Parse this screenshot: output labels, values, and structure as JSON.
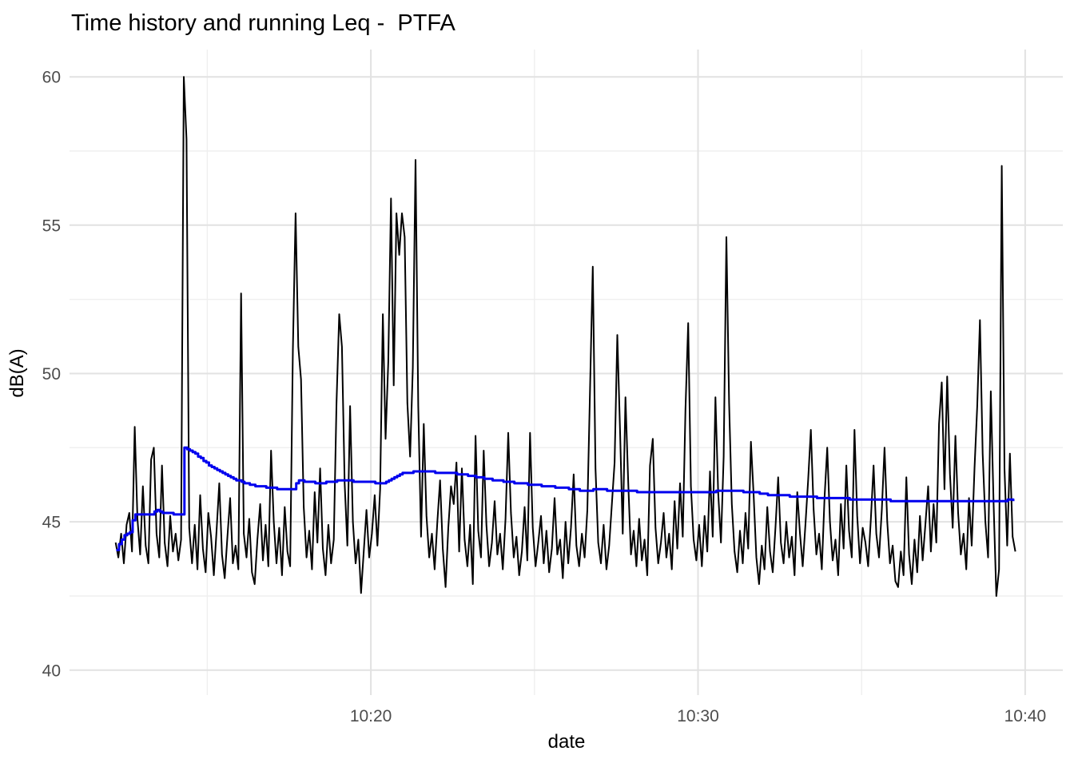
{
  "chart_data": {
    "type": "line",
    "title": "Time history and running Leq -  PTFA",
    "xlabel": "date",
    "ylabel": "dB(A)",
    "grid": {
      "background": "#ffffff",
      "major_color": "#e2e2e2",
      "minor_color": "#efefef",
      "legend": "none"
    },
    "x_axis": {
      "unit": "minutes after 10:00",
      "lim": [
        10.79,
        41.15
      ],
      "major_ticks": [
        {
          "value": 20,
          "label": "10:20"
        },
        {
          "value": 30,
          "label": "10:30"
        },
        {
          "value": 40,
          "label": "10:40"
        }
      ],
      "minor_ticks": [
        15,
        25,
        35
      ]
    },
    "y_axis": {
      "lim": [
        39.16,
        60.92
      ],
      "major_ticks": [
        {
          "value": 40,
          "label": "40"
        },
        {
          "value": 45,
          "label": "45"
        },
        {
          "value": 50,
          "label": "50"
        },
        {
          "value": 55,
          "label": "55"
        },
        {
          "value": 60,
          "label": "60"
        }
      ],
      "minor_ticks": [
        42.5,
        47.5,
        52.5,
        57.5
      ]
    },
    "series": [
      {
        "name": "time history",
        "draw": "line",
        "color": "#000000",
        "width": 2,
        "t0_min": 12.2,
        "dt_s": 5,
        "values": [
          44.3,
          43.8,
          44.6,
          43.6,
          44.9,
          45.3,
          44.0,
          48.2,
          45.1,
          43.9,
          46.2,
          44.2,
          43.6,
          47.1,
          47.5,
          44.6,
          43.8,
          46.9,
          44.3,
          43.5,
          45.2,
          44.0,
          44.6,
          43.7,
          44.4,
          60.0,
          57.9,
          44.8,
          43.6,
          44.9,
          43.4,
          45.9,
          44.1,
          43.3,
          45.3,
          44.5,
          43.2,
          44.7,
          46.3,
          43.9,
          43.1,
          44.5,
          45.8,
          43.6,
          44.2,
          43.4,
          52.7,
          44.6,
          43.8,
          45.1,
          43.3,
          42.9,
          44.4,
          45.6,
          43.7,
          44.9,
          43.5,
          47.4,
          45.0,
          43.6,
          44.8,
          43.2,
          45.5,
          44.0,
          43.5,
          50.8,
          55.4,
          50.9,
          49.8,
          45.5,
          43.8,
          44.7,
          43.4,
          46.0,
          44.3,
          46.8,
          44.1,
          43.2,
          44.9,
          43.6,
          44.4,
          49.0,
          52.0,
          50.9,
          46.3,
          44.2,
          48.9,
          45.0,
          43.6,
          44.4,
          42.6,
          44.0,
          45.4,
          43.8,
          44.6,
          45.9,
          44.2,
          46.1,
          52.0,
          47.8,
          50.4,
          55.9,
          49.6,
          55.4,
          54.0,
          55.4,
          54.6,
          49.0,
          47.2,
          50.2,
          57.2,
          48.9,
          44.5,
          48.3,
          45.2,
          43.8,
          44.6,
          43.4,
          45.0,
          46.4,
          44.1,
          42.8,
          44.8,
          46.2,
          45.6,
          47.0,
          44.0,
          46.8,
          44.4,
          43.5,
          44.9,
          42.9,
          47.9,
          44.7,
          43.8,
          47.4,
          44.9,
          43.5,
          44.3,
          45.7,
          43.9,
          44.6,
          43.4,
          45.1,
          48.0,
          45.3,
          43.8,
          44.5,
          43.2,
          44.0,
          45.5,
          43.7,
          48.0,
          44.8,
          43.5,
          44.3,
          45.2,
          43.6,
          44.7,
          43.3,
          44.1,
          45.8,
          43.9,
          44.4,
          43.1,
          45.0,
          43.6,
          44.8,
          46.6,
          44.2,
          43.5,
          44.6,
          43.8,
          45.4,
          49.5,
          53.6,
          46.8,
          44.3,
          43.6,
          44.9,
          43.4,
          44.2,
          45.6,
          47.0,
          51.3,
          48.1,
          44.6,
          49.2,
          46.3,
          43.9,
          44.7,
          43.5,
          45.1,
          43.7,
          44.4,
          43.2,
          46.9,
          47.8,
          44.8,
          43.6,
          44.3,
          45.3,
          43.8,
          44.6,
          43.4,
          45.7,
          44.1,
          46.3,
          44.5,
          48.8,
          51.7,
          46.2,
          44.4,
          43.7,
          44.9,
          43.5,
          45.2,
          44.0,
          46.7,
          44.5,
          49.2,
          46.0,
          44.3,
          47.2,
          54.6,
          49.0,
          45.6,
          44.0,
          43.3,
          44.7,
          43.6,
          45.3,
          44.1,
          47.7,
          45.9,
          43.8,
          42.9,
          44.2,
          43.4,
          45.5,
          44.0,
          43.3,
          44.8,
          46.5,
          44.3,
          43.6,
          45.0,
          43.8,
          44.5,
          43.2,
          46.0,
          44.6,
          43.5,
          44.9,
          46.4,
          48.1,
          45.4,
          43.9,
          44.6,
          43.4,
          45.8,
          47.5,
          45.0,
          43.7,
          44.4,
          43.2,
          45.6,
          44.1,
          46.9,
          44.7,
          43.8,
          48.1,
          45.2,
          43.6,
          44.8,
          44.3,
          43.5,
          45.1,
          46.9,
          44.6,
          43.8,
          45.4,
          47.5,
          45.0,
          43.6,
          44.2,
          43.0,
          42.8,
          44.0,
          43.2,
          46.5,
          43.9,
          42.9,
          44.4,
          43.3,
          45.2,
          43.7,
          44.9,
          46.2,
          44.0,
          45.6,
          44.3,
          48.3,
          49.7,
          46.1,
          49.9,
          46.6,
          44.8,
          47.9,
          45.3,
          43.9,
          44.6,
          43.4,
          45.8,
          44.2,
          46.8,
          48.9,
          51.8,
          47.3,
          45.0,
          43.8,
          49.4,
          45.7,
          42.5,
          43.4,
          57.0,
          46.8,
          44.2,
          47.3,
          44.5,
          44.0
        ]
      },
      {
        "name": "running Leq",
        "draw": "step",
        "color": "#0000ee",
        "width": 3,
        "step_quantize_db": 0.05,
        "sample_dt_s": 5,
        "points": [
          [
            12.22,
            44.05
          ],
          [
            12.32,
            44.3
          ],
          [
            12.47,
            44.55
          ],
          [
            12.62,
            44.6
          ],
          [
            12.77,
            45.25
          ],
          [
            13.3,
            45.25
          ],
          [
            13.47,
            45.4
          ],
          [
            13.67,
            45.3
          ],
          [
            14.23,
            45.25
          ],
          [
            14.3,
            47.5
          ],
          [
            14.52,
            47.4
          ],
          [
            15.08,
            46.9
          ],
          [
            15.7,
            46.5
          ],
          [
            16.31,
            46.25
          ],
          [
            17.21,
            46.1
          ],
          [
            17.65,
            46.1
          ],
          [
            17.75,
            46.4
          ],
          [
            18.43,
            46.3
          ],
          [
            19.05,
            46.4
          ],
          [
            19.78,
            46.35
          ],
          [
            20.39,
            46.3
          ],
          [
            20.64,
            46.45
          ],
          [
            21.0,
            46.65
          ],
          [
            21.44,
            46.7
          ],
          [
            22.35,
            46.65
          ],
          [
            22.84,
            46.6
          ],
          [
            23.81,
            46.4
          ],
          [
            24.96,
            46.25
          ],
          [
            25.77,
            46.15
          ],
          [
            26.58,
            46.05
          ],
          [
            26.87,
            46.1
          ],
          [
            27.55,
            46.05
          ],
          [
            28.7,
            46.0
          ],
          [
            30.0,
            46.0
          ],
          [
            31.03,
            46.05
          ],
          [
            31.64,
            46.0
          ],
          [
            32.3,
            45.9
          ],
          [
            34.03,
            45.8
          ],
          [
            36.45,
            45.7
          ],
          [
            39.39,
            45.7
          ],
          [
            39.46,
            45.75
          ],
          [
            39.7,
            45.7
          ]
        ]
      }
    ]
  }
}
